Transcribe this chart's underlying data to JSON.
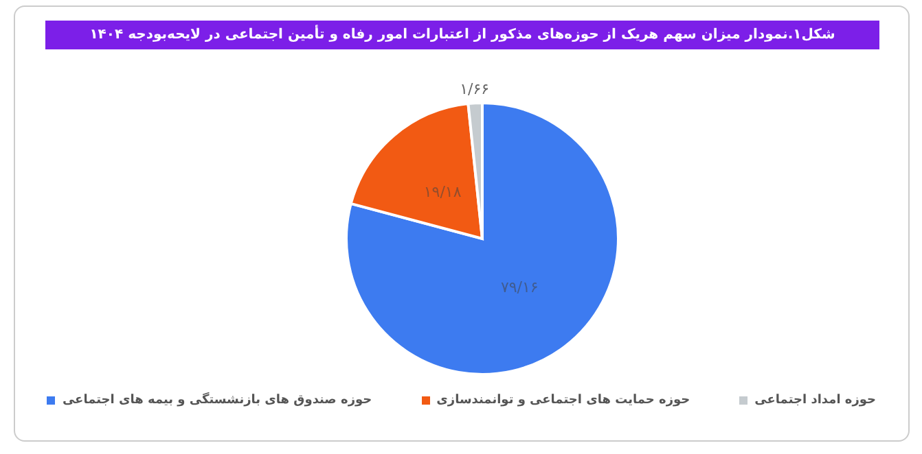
{
  "chart_data": {
    "type": "pie",
    "title": "شکل۱.نمودار میزان سهم هریک از حوزه‌های مذکور از اعتبارات امور رفاه و تأمین اجتماعی در لایحه‌بودجه ۱۴۰۴",
    "categories": [
      "حوزه صندوق های بازنشستگی و بیمه های اجتماعی",
      "حوزه حمایت های اجتماعی و توانمندسازی",
      "حوزه امداد اجتماعی"
    ],
    "values": [
      79.16,
      19.18,
      1.66
    ],
    "value_labels": [
      "۷۹/۱۶",
      "۱۹/۱۸",
      "۱/۶۶"
    ],
    "colors": [
      "#3d7bf0",
      "#f25a13",
      "#c5cbcf"
    ],
    "legend": "bottom"
  }
}
